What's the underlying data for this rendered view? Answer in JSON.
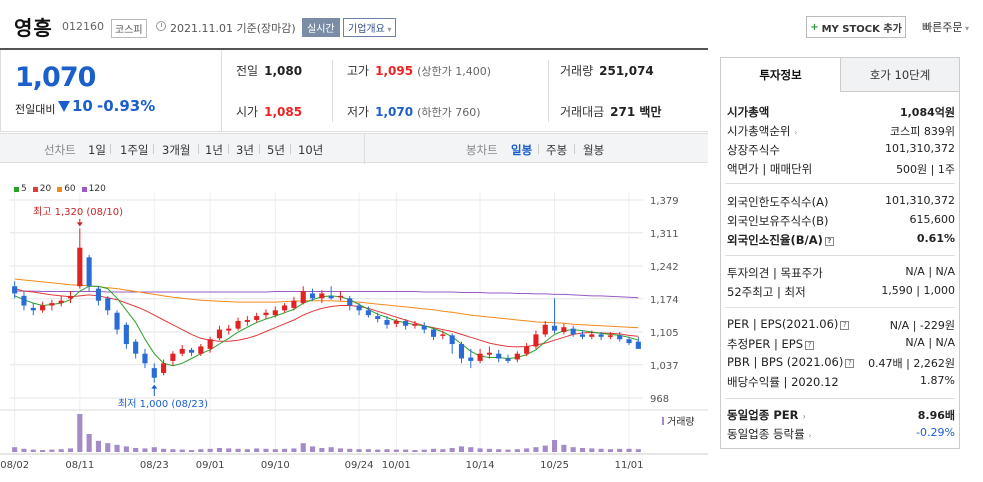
{
  "header": {
    "stock_name": "영흥",
    "stock_code": "012160",
    "market": "코스피",
    "date_text": "2021.11.01  기준(장마감)",
    "realtime": "실시간",
    "overview": "기업개요",
    "mystock_label": "MY STOCK 추가",
    "quick_order": "빠른주문"
  },
  "price": {
    "current": "1,070",
    "prev_label": "전일대비",
    "change": "10",
    "change_rate": "-0.93%",
    "colors": {
      "down": "#1a5fcc",
      "up": "#e22222"
    }
  },
  "stats": {
    "prev_close": {
      "label": "전일",
      "value": "1,080"
    },
    "open": {
      "label": "시가",
      "value": "1,085"
    },
    "high": {
      "label": "고가",
      "value": "1,095",
      "sub": "(상한가 1,400)"
    },
    "low": {
      "label": "저가",
      "value": "1,070",
      "sub": "(하한가 760)"
    },
    "volume": {
      "label": "거래량",
      "value": "251,074"
    },
    "amount": {
      "label": "거래대금",
      "value": "271 백만"
    }
  },
  "period_bar": {
    "line_label": "선차트",
    "line_periods": [
      "1일",
      "1주일",
      "3개월",
      "1년",
      "3년",
      "5년",
      "10년"
    ],
    "candle_label": "봉차트",
    "candle_periods": [
      "일봉",
      "주봉",
      "월봉"
    ],
    "active_candle": "일봉"
  },
  "chart_data": {
    "type": "candlestick",
    "legend": [
      {
        "name": "5",
        "color": "#2aa02a"
      },
      {
        "name": "20",
        "color": "#e03a3a"
      },
      {
        "name": "60",
        "color": "#f28a1a"
      },
      {
        "name": "120",
        "color": "#9a5ac8"
      }
    ],
    "y_ticks": [
      "1,379",
      "1,311",
      "1,242",
      "1,174",
      "1,105",
      "1,037",
      "968"
    ],
    "ylim": [
      968,
      1379
    ],
    "x_ticks": [
      "08/02",
      "08/11",
      "08/23",
      "09/01",
      "09/10",
      "09/24",
      "10/01",
      "10/14",
      "10/25",
      "11/01"
    ],
    "high_annotation": "최고 1,320 (08/10)",
    "low_annotation": "최저 1,000 (08/23)",
    "volume_label": "거래량",
    "candles": [
      [
        1200,
        1185,
        1210,
        1175
      ],
      [
        1180,
        1160,
        1190,
        1150
      ],
      [
        1155,
        1150,
        1165,
        1140
      ],
      [
        1150,
        1160,
        1168,
        1145
      ],
      [
        1160,
        1165,
        1172,
        1150
      ],
      [
        1165,
        1170,
        1180,
        1158
      ],
      [
        1175,
        1180,
        1190,
        1165
      ],
      [
        1200,
        1280,
        1320,
        1195
      ],
      [
        1260,
        1200,
        1265,
        1190
      ],
      [
        1195,
        1170,
        1200,
        1160
      ],
      [
        1175,
        1150,
        1180,
        1140
      ],
      [
        1145,
        1110,
        1150,
        1100
      ],
      [
        1120,
        1080,
        1125,
        1070
      ],
      [
        1085,
        1060,
        1090,
        1050
      ],
      [
        1060,
        1040,
        1070,
        1030
      ],
      [
        1030,
        1010,
        1040,
        1000
      ],
      [
        1020,
        1040,
        1048,
        1015
      ],
      [
        1045,
        1060,
        1065,
        1035
      ],
      [
        1060,
        1070,
        1078,
        1055
      ],
      [
        1068,
        1062,
        1072,
        1055
      ],
      [
        1060,
        1075,
        1080,
        1055
      ],
      [
        1070,
        1090,
        1095,
        1062
      ],
      [
        1092,
        1110,
        1118,
        1088
      ],
      [
        1108,
        1112,
        1120,
        1100
      ],
      [
        1112,
        1128,
        1135,
        1108
      ],
      [
        1126,
        1130,
        1138,
        1118
      ],
      [
        1130,
        1138,
        1145,
        1125
      ],
      [
        1140,
        1145,
        1152,
        1132
      ],
      [
        1140,
        1150,
        1158,
        1135
      ],
      [
        1150,
        1160,
        1165,
        1145
      ],
      [
        1155,
        1170,
        1178,
        1150
      ],
      [
        1165,
        1190,
        1200,
        1162
      ],
      [
        1185,
        1175,
        1195,
        1170
      ],
      [
        1175,
        1185,
        1192,
        1165
      ],
      [
        1180,
        1175,
        1200,
        1172
      ],
      [
        1178,
        1180,
        1190,
        1170
      ],
      [
        1175,
        1160,
        1180,
        1150
      ],
      [
        1160,
        1150,
        1165,
        1140
      ],
      [
        1150,
        1140,
        1158,
        1135
      ],
      [
        1138,
        1132,
        1145,
        1125
      ],
      [
        1130,
        1120,
        1138,
        1112
      ],
      [
        1122,
        1128,
        1132,
        1115
      ],
      [
        1128,
        1118,
        1132,
        1110
      ],
      [
        1118,
        1122,
        1128,
        1112
      ],
      [
        1118,
        1110,
        1125,
        1102
      ],
      [
        1110,
        1095,
        1115,
        1088
      ],
      [
        1098,
        1100,
        1108,
        1090
      ],
      [
        1098,
        1080,
        1102,
        1060
      ],
      [
        1080,
        1050,
        1085,
        1040
      ],
      [
        1052,
        1045,
        1070,
        1030
      ],
      [
        1045,
        1060,
        1070,
        1040
      ],
      [
        1058,
        1062,
        1075,
        1050
      ],
      [
        1060,
        1050,
        1068,
        1042
      ],
      [
        1050,
        1045,
        1058,
        1040
      ],
      [
        1048,
        1060,
        1065,
        1042
      ],
      [
        1060,
        1075,
        1082,
        1055
      ],
      [
        1075,
        1100,
        1108,
        1070
      ],
      [
        1100,
        1120,
        1128,
        1095
      ],
      [
        1118,
        1108,
        1175,
        1102
      ],
      [
        1105,
        1115,
        1122,
        1100
      ],
      [
        1112,
        1100,
        1118,
        1095
      ],
      [
        1100,
        1095,
        1108,
        1090
      ],
      [
        1095,
        1100,
        1108,
        1090
      ],
      [
        1100,
        1095,
        1105,
        1088
      ],
      [
        1095,
        1098,
        1105,
        1090
      ],
      [
        1098,
        1090,
        1105,
        1085
      ],
      [
        1090,
        1082,
        1095,
        1078
      ],
      [
        1085,
        1070,
        1095,
        1070
      ]
    ],
    "ma5": [
      1180,
      1172,
      1165,
      1160,
      1162,
      1165,
      1172,
      1190,
      1200,
      1200,
      1195,
      1175,
      1150,
      1125,
      1090,
      1060,
      1040,
      1035,
      1040,
      1050,
      1060,
      1068,
      1080,
      1092,
      1105,
      1115,
      1125,
      1132,
      1138,
      1145,
      1152,
      1165,
      1172,
      1178,
      1180,
      1178,
      1172,
      1162,
      1152,
      1142,
      1135,
      1128,
      1124,
      1120,
      1118,
      1112,
      1105,
      1095,
      1080,
      1065,
      1055,
      1052,
      1052,
      1050,
      1052,
      1058,
      1068,
      1085,
      1100,
      1108,
      1110,
      1108,
      1105,
      1102,
      1100,
      1098,
      1094,
      1088
    ],
    "ma20": [
      1195,
      1190,
      1188,
      1185,
      1182,
      1180,
      1178,
      1180,
      1182,
      1180,
      1176,
      1172,
      1165,
      1158,
      1150,
      1140,
      1130,
      1120,
      1110,
      1100,
      1092,
      1088,
      1086,
      1086,
      1088,
      1092,
      1098,
      1106,
      1114,
      1122,
      1130,
      1140,
      1148,
      1154,
      1158,
      1160,
      1160,
      1158,
      1154,
      1148,
      1142,
      1136,
      1130,
      1124,
      1118,
      1114,
      1110,
      1106,
      1100,
      1094,
      1088,
      1082,
      1078,
      1075,
      1074,
      1075,
      1078,
      1082,
      1088,
      1094,
      1100,
      1103,
      1104,
      1103,
      1102,
      1101,
      1098,
      1096
    ],
    "ma60": [
      1215,
      1213,
      1211,
      1209,
      1207,
      1205,
      1203,
      1202,
      1201,
      1199,
      1197,
      1195,
      1192,
      1189,
      1186,
      1183,
      1180,
      1177,
      1175,
      1173,
      1171,
      1170,
      1169,
      1168,
      1167,
      1167,
      1167,
      1167,
      1167,
      1168,
      1169,
      1170,
      1170,
      1170,
      1170,
      1169,
      1168,
      1167,
      1165,
      1163,
      1161,
      1159,
      1157,
      1155,
      1153,
      1151,
      1148,
      1146,
      1143,
      1140,
      1138,
      1136,
      1134,
      1132,
      1130,
      1128,
      1126,
      1125,
      1124,
      1123,
      1121,
      1120,
      1119,
      1118,
      1117,
      1116,
      1115,
      1114
    ],
    "ma120": [
      1190,
      1190,
      1190,
      1189,
      1189,
      1189,
      1189,
      1189,
      1189,
      1189,
      1188,
      1188,
      1188,
      1188,
      1188,
      1188,
      1188,
      1188,
      1188,
      1188,
      1188,
      1188,
      1188,
      1188,
      1188,
      1188,
      1188,
      1188,
      1189,
      1189,
      1189,
      1189,
      1189,
      1189,
      1189,
      1189,
      1189,
      1189,
      1189,
      1189,
      1189,
      1189,
      1189,
      1189,
      1188,
      1188,
      1188,
      1188,
      1187,
      1187,
      1187,
      1186,
      1186,
      1186,
      1185,
      1185,
      1184,
      1184,
      1183,
      1183,
      1182,
      1181,
      1180,
      1180,
      1179,
      1178,
      1177,
      1176
    ],
    "volume": [
      12,
      8,
      6,
      5,
      6,
      7,
      9,
      95,
      45,
      28,
      22,
      18,
      14,
      10,
      9,
      12,
      8,
      7,
      6,
      5,
      7,
      8,
      10,
      9,
      8,
      7,
      9,
      8,
      7,
      8,
      9,
      22,
      14,
      10,
      12,
      9,
      8,
      7,
      7,
      6,
      7,
      6,
      6,
      5,
      6,
      8,
      7,
      10,
      14,
      12,
      9,
      8,
      7,
      6,
      7,
      9,
      12,
      16,
      30,
      18,
      12,
      10,
      9,
      8,
      7,
      8,
      8,
      7
    ]
  },
  "right_panel": {
    "tab_invest": "투자정보",
    "tab_hoga": "호가 10단계",
    "market_cap_label": "시가총액",
    "market_cap": "1,084억원",
    "cap_rank_label": "시가총액순위",
    "cap_rank": "코스피 839위",
    "shares_label": "상장주식수",
    "shares": "101,310,372",
    "par_label": "액면가 | 매매단위",
    "par": "500원 | 1주",
    "foreign_limit_label": "외국인한도주식수(A)",
    "foreign_limit": "101,310,372",
    "foreign_hold_label": "외국인보유주식수(B)",
    "foreign_hold": "615,600",
    "foreign_ratio_label": "외국인소진율(B/A)",
    "foreign_ratio": "0.61%",
    "opinion_label": "투자의견 | 목표주가",
    "opinion": "N/A | N/A",
    "wk52_label": "52주최고 | 최저",
    "wk52": "1,590 | 1,000",
    "per_label": "PER | EPS(2021.06)",
    "per": "N/A | -229원",
    "est_per_label": "추정PER | EPS",
    "est_per": "N/A | N/A",
    "pbr_label": "PBR | BPS (2021.06)",
    "pbr": "0.47배 | 2,262원",
    "div_label": "배당수익률 | 2020.12",
    "div": "1.87%",
    "ind_per_label": "동일업종 PER",
    "ind_per": "8.96배",
    "ind_rate_label": "동일업종 등락률",
    "ind_rate": "-0.29%"
  }
}
